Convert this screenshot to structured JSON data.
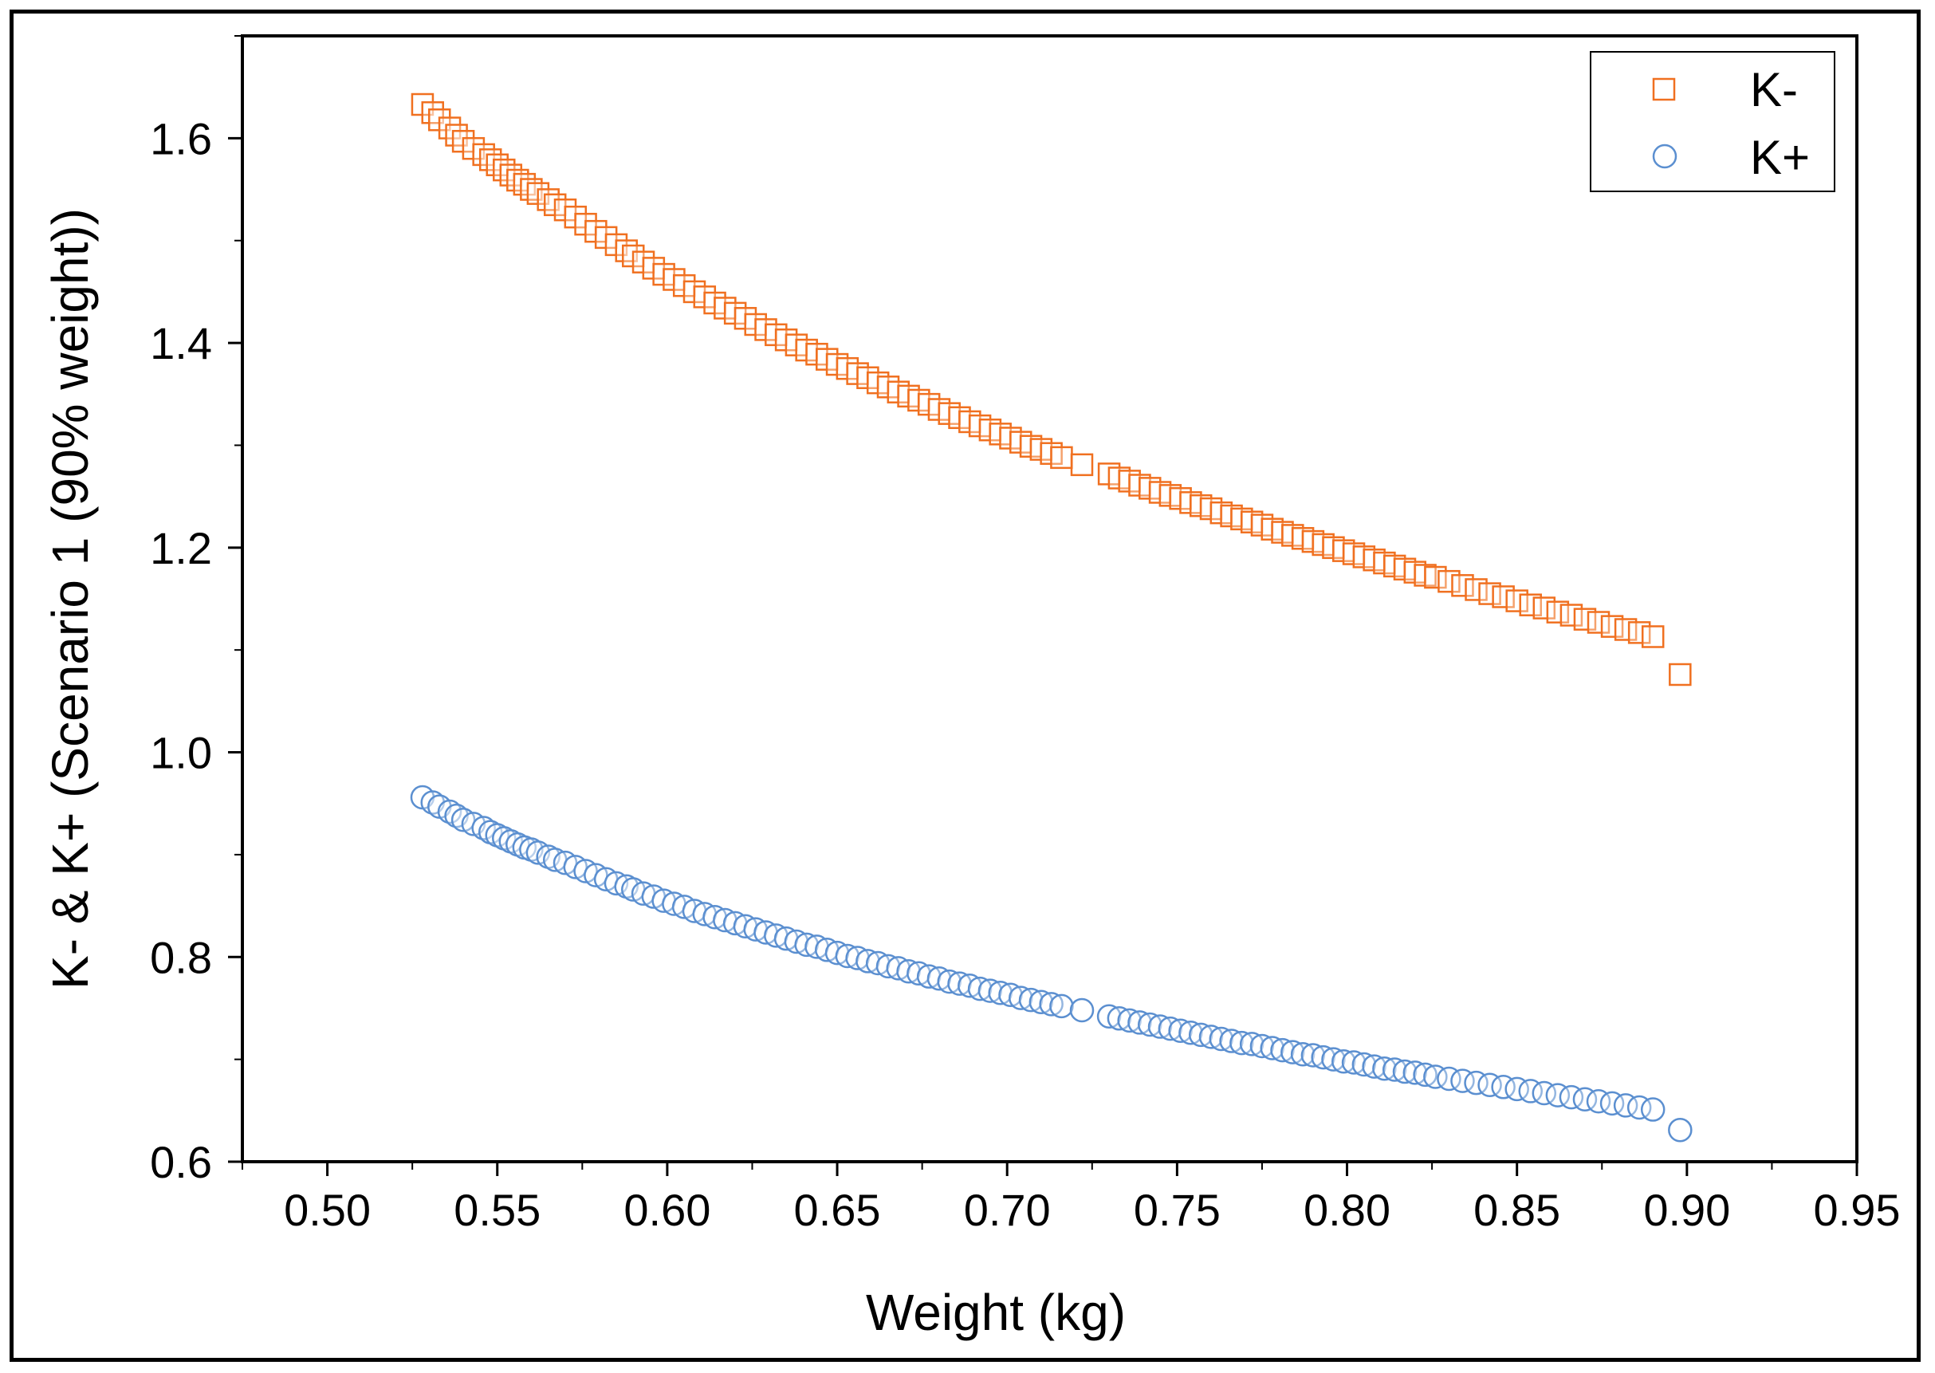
{
  "chart_data": {
    "type": "scatter",
    "title": "",
    "xlabel": "Weight (kg)",
    "ylabel": "K- & K+ (Scenario 1 (90% weight))",
    "xlim": [
      0.475,
      0.95
    ],
    "ylim": [
      0.6,
      1.7
    ],
    "xticks": [
      0.5,
      0.55,
      0.6,
      0.65,
      0.7,
      0.75,
      0.8,
      0.85,
      0.9,
      0.95
    ],
    "xtick_labels": [
      "0.50",
      "0.55",
      "0.60",
      "0.65",
      "0.70",
      "0.75",
      "0.80",
      "0.85",
      "0.90",
      "0.95"
    ],
    "yticks": [
      0.6,
      0.8,
      1.0,
      1.2,
      1.4,
      1.6
    ],
    "ytick_labels": [
      "0.6",
      "0.8",
      "1.0",
      "1.2",
      "1.4",
      "1.6"
    ],
    "legend_position": "top-right",
    "series": [
      {
        "name": "K-",
        "marker": "square",
        "color": "#F07020",
        "x": [
          0.528,
          0.531,
          0.533,
          0.536,
          0.538,
          0.54,
          0.543,
          0.546,
          0.548,
          0.55,
          0.552,
          0.554,
          0.556,
          0.558,
          0.56,
          0.562,
          0.565,
          0.567,
          0.57,
          0.573,
          0.576,
          0.579,
          0.582,
          0.585,
          0.588,
          0.59,
          0.593,
          0.596,
          0.599,
          0.602,
          0.605,
          0.608,
          0.611,
          0.614,
          0.617,
          0.62,
          0.623,
          0.626,
          0.629,
          0.632,
          0.635,
          0.638,
          0.641,
          0.644,
          0.647,
          0.65,
          0.653,
          0.656,
          0.659,
          0.662,
          0.665,
          0.668,
          0.671,
          0.674,
          0.677,
          0.68,
          0.683,
          0.686,
          0.689,
          0.692,
          0.695,
          0.698,
          0.701,
          0.704,
          0.707,
          0.71,
          0.713,
          0.716,
          0.722,
          0.73,
          0.733,
          0.736,
          0.739,
          0.742,
          0.745,
          0.748,
          0.751,
          0.754,
          0.757,
          0.76,
          0.763,
          0.766,
          0.769,
          0.772,
          0.775,
          0.778,
          0.781,
          0.784,
          0.787,
          0.79,
          0.793,
          0.796,
          0.799,
          0.802,
          0.805,
          0.808,
          0.811,
          0.814,
          0.817,
          0.82,
          0.823,
          0.826,
          0.83,
          0.834,
          0.838,
          0.842,
          0.846,
          0.85,
          0.854,
          0.858,
          0.862,
          0.866,
          0.87,
          0.874,
          0.878,
          0.882,
          0.886,
          0.89,
          0.898
        ],
        "y": [
          1.633,
          1.625,
          1.618,
          1.61,
          1.603,
          1.597,
          1.59,
          1.584,
          1.579,
          1.574,
          1.569,
          1.564,
          1.559,
          1.555,
          1.55,
          1.546,
          1.54,
          1.535,
          1.53,
          1.523,
          1.516,
          1.509,
          1.503,
          1.496,
          1.49,
          1.485,
          1.479,
          1.473,
          1.467,
          1.462,
          1.456,
          1.45,
          1.445,
          1.439,
          1.434,
          1.429,
          1.424,
          1.418,
          1.413,
          1.408,
          1.403,
          1.398,
          1.393,
          1.389,
          1.384,
          1.379,
          1.375,
          1.37,
          1.366,
          1.361,
          1.357,
          1.352,
          1.348,
          1.344,
          1.34,
          1.335,
          1.331,
          1.327,
          1.323,
          1.319,
          1.315,
          1.311,
          1.307,
          1.303,
          1.299,
          1.296,
          1.292,
          1.288,
          1.281,
          1.272,
          1.268,
          1.265,
          1.261,
          1.258,
          1.254,
          1.251,
          1.248,
          1.244,
          1.241,
          1.238,
          1.234,
          1.231,
          1.228,
          1.225,
          1.222,
          1.218,
          1.215,
          1.212,
          1.209,
          1.206,
          1.203,
          1.2,
          1.197,
          1.194,
          1.191,
          1.188,
          1.185,
          1.182,
          1.179,
          1.176,
          1.173,
          1.171,
          1.167,
          1.163,
          1.159,
          1.155,
          1.152,
          1.148,
          1.144,
          1.141,
          1.137,
          1.134,
          1.13,
          1.127,
          1.123,
          1.12,
          1.117,
          1.113,
          1.076
        ]
      },
      {
        "name": "K+",
        "marker": "circle",
        "color": "#5B8FD0",
        "x": [
          0.528,
          0.531,
          0.533,
          0.536,
          0.538,
          0.54,
          0.543,
          0.546,
          0.548,
          0.55,
          0.552,
          0.554,
          0.556,
          0.558,
          0.56,
          0.562,
          0.565,
          0.567,
          0.57,
          0.573,
          0.576,
          0.579,
          0.582,
          0.585,
          0.588,
          0.59,
          0.593,
          0.596,
          0.599,
          0.602,
          0.605,
          0.608,
          0.611,
          0.614,
          0.617,
          0.62,
          0.623,
          0.626,
          0.629,
          0.632,
          0.635,
          0.638,
          0.641,
          0.644,
          0.647,
          0.65,
          0.653,
          0.656,
          0.659,
          0.662,
          0.665,
          0.668,
          0.671,
          0.674,
          0.677,
          0.68,
          0.683,
          0.686,
          0.689,
          0.692,
          0.695,
          0.698,
          0.701,
          0.704,
          0.707,
          0.71,
          0.713,
          0.716,
          0.722,
          0.73,
          0.733,
          0.736,
          0.739,
          0.742,
          0.745,
          0.748,
          0.751,
          0.754,
          0.757,
          0.76,
          0.763,
          0.766,
          0.769,
          0.772,
          0.775,
          0.778,
          0.781,
          0.784,
          0.787,
          0.79,
          0.793,
          0.796,
          0.799,
          0.802,
          0.805,
          0.808,
          0.811,
          0.814,
          0.817,
          0.82,
          0.823,
          0.826,
          0.83,
          0.834,
          0.838,
          0.842,
          0.846,
          0.85,
          0.854,
          0.858,
          0.862,
          0.866,
          0.87,
          0.874,
          0.878,
          0.882,
          0.886,
          0.89,
          0.898
        ],
        "y": [
          0.956,
          0.951,
          0.947,
          0.942,
          0.938,
          0.934,
          0.93,
          0.926,
          0.922,
          0.919,
          0.916,
          0.913,
          0.91,
          0.907,
          0.905,
          0.902,
          0.898,
          0.895,
          0.892,
          0.888,
          0.884,
          0.88,
          0.876,
          0.872,
          0.869,
          0.866,
          0.862,
          0.859,
          0.855,
          0.852,
          0.849,
          0.845,
          0.842,
          0.839,
          0.836,
          0.833,
          0.83,
          0.827,
          0.824,
          0.821,
          0.818,
          0.815,
          0.812,
          0.81,
          0.807,
          0.804,
          0.801,
          0.799,
          0.796,
          0.794,
          0.791,
          0.789,
          0.786,
          0.784,
          0.781,
          0.779,
          0.776,
          0.774,
          0.772,
          0.769,
          0.767,
          0.765,
          0.763,
          0.76,
          0.758,
          0.756,
          0.754,
          0.752,
          0.748,
          0.742,
          0.74,
          0.738,
          0.736,
          0.734,
          0.732,
          0.73,
          0.728,
          0.726,
          0.724,
          0.722,
          0.72,
          0.718,
          0.716,
          0.715,
          0.713,
          0.711,
          0.709,
          0.707,
          0.705,
          0.704,
          0.702,
          0.7,
          0.698,
          0.697,
          0.695,
          0.693,
          0.691,
          0.69,
          0.688,
          0.687,
          0.685,
          0.683,
          0.681,
          0.679,
          0.677,
          0.675,
          0.673,
          0.671,
          0.669,
          0.667,
          0.665,
          0.663,
          0.661,
          0.659,
          0.657,
          0.655,
          0.653,
          0.651,
          0.631
        ]
      }
    ]
  }
}
